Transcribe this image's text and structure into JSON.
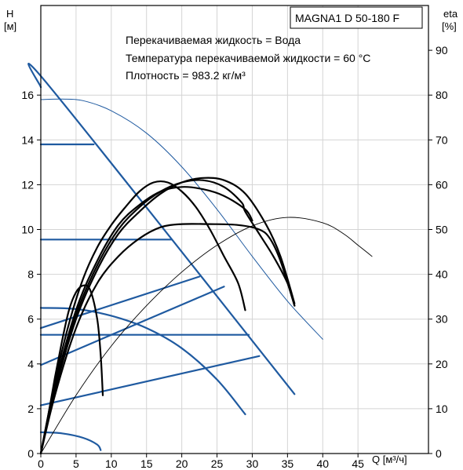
{
  "chart_data": {
    "type": "line",
    "model": "MAGNA1 D 50-180 F",
    "info_lines": [
      "Перекачиваемая жидкость = Вода",
      "Температура перекачиваемой жидкости = 60 °C",
      "Плотность = 983.2 кг/м³"
    ],
    "xlabel": "Q [м³/ч]",
    "ylabel_left": [
      "H",
      "[м]"
    ],
    "ylabel_right": [
      "eta",
      "[%]"
    ],
    "xlim": [
      0,
      55
    ],
    "ylim_left": [
      0,
      20
    ],
    "ylim_right": [
      0,
      100
    ],
    "x_ticks": [
      0,
      5,
      10,
      15,
      20,
      25,
      30,
      35,
      40,
      45
    ],
    "y_left_ticks": [
      0,
      2,
      4,
      6,
      8,
      10,
      12,
      14,
      16
    ],
    "y_right_ticks": [
      0,
      10,
      20,
      30,
      40,
      50,
      60,
      70,
      80,
      90
    ],
    "grid": true,
    "colors": {
      "head": "#1f5aa0",
      "efficiency": "#000000",
      "thin_head": "#1f5aa0"
    },
    "series": [
      {
        "axis": "left",
        "style": "head-thick",
        "points": [
          [
            0,
            16.35
          ],
          [
            1.2,
            16.4
          ],
          [
            36,
            2.65
          ]
        ]
      },
      {
        "axis": "left",
        "style": "head-thick",
        "points": [
          [
            0,
            13.8
          ],
          [
            7.5,
            13.8
          ]
        ]
      },
      {
        "axis": "left",
        "style": "head-thick",
        "points": [
          [
            0,
            9.55
          ],
          [
            18.5,
            9.55
          ]
        ]
      },
      {
        "axis": "left",
        "style": "head-thick",
        "points": [
          [
            0,
            5.3
          ],
          [
            29.5,
            5.3
          ]
        ]
      },
      {
        "axis": "left",
        "style": "head-thick",
        "points": [
          [
            0,
            5.6
          ],
          [
            22.5,
            7.9
          ]
        ]
      },
      {
        "axis": "left",
        "style": "head-thick",
        "points": [
          [
            0,
            3.95
          ],
          [
            26,
            7.45
          ]
        ]
      },
      {
        "axis": "left",
        "style": "head-thick",
        "points": [
          [
            0,
            2.15
          ],
          [
            31,
            4.35
          ]
        ]
      },
      {
        "axis": "left",
        "style": "head-thick",
        "points": [
          [
            0,
            6.5
          ],
          [
            5,
            6.45
          ],
          [
            10,
            6.15
          ],
          [
            15,
            5.6
          ],
          [
            20,
            4.7
          ],
          [
            25,
            3.3
          ],
          [
            29,
            1.75
          ]
        ]
      },
      {
        "axis": "left",
        "style": "head-thick",
        "points": [
          [
            0,
            0.95
          ],
          [
            3,
            0.9
          ],
          [
            6,
            0.7
          ],
          [
            8,
            0.4
          ],
          [
            8.5,
            0.15
          ]
        ]
      },
      {
        "axis": "left",
        "style": "head-thin",
        "points": [
          [
            0,
            15.8
          ],
          [
            3,
            15.82
          ],
          [
            6,
            15.75
          ],
          [
            10,
            15.3
          ],
          [
            15,
            14.3
          ],
          [
            20,
            12.8
          ],
          [
            25,
            10.9
          ],
          [
            30,
            8.8
          ],
          [
            35,
            6.8
          ],
          [
            40,
            5.1
          ]
        ]
      },
      {
        "axis": "right",
        "style": "eta-thick",
        "points": [
          [
            0,
            0
          ],
          [
            1,
            8
          ],
          [
            2,
            17
          ],
          [
            3,
            25
          ],
          [
            4,
            32
          ],
          [
            5,
            36
          ],
          [
            6,
            37.5
          ],
          [
            7,
            36.5
          ],
          [
            8,
            30
          ],
          [
            8.5,
            22
          ],
          [
            8.8,
            13
          ]
        ]
      },
      {
        "axis": "right",
        "style": "eta-thick",
        "points": [
          [
            0,
            0
          ],
          [
            2,
            16
          ],
          [
            4,
            29
          ],
          [
            6,
            39
          ],
          [
            8,
            46
          ],
          [
            10,
            51
          ],
          [
            12,
            55
          ],
          [
            14,
            58.5
          ],
          [
            16,
            60.5
          ],
          [
            18,
            60.5
          ],
          [
            20,
            58.5
          ],
          [
            22,
            55
          ],
          [
            24,
            50
          ],
          [
            26,
            44
          ],
          [
            28,
            38
          ],
          [
            29,
            32
          ]
        ]
      },
      {
        "axis": "right",
        "style": "eta-thick",
        "points": [
          [
            0,
            0
          ],
          [
            2,
            15
          ],
          [
            5,
            32
          ],
          [
            8,
            43
          ],
          [
            11,
            51
          ],
          [
            14,
            55.5
          ],
          [
            17,
            58.5
          ],
          [
            20,
            59.5
          ],
          [
            23,
            59
          ],
          [
            26,
            57.5
          ],
          [
            29,
            54.5
          ],
          [
            30,
            52
          ]
        ]
      },
      {
        "axis": "right",
        "style": "eta-thick",
        "points": [
          [
            0,
            0
          ],
          [
            2,
            14
          ],
          [
            5,
            30
          ],
          [
            8,
            41
          ],
          [
            11,
            49
          ],
          [
            14,
            54
          ],
          [
            17,
            58
          ],
          [
            20,
            60.5
          ],
          [
            23,
            61.5
          ],
          [
            26,
            61
          ],
          [
            29,
            58
          ],
          [
            32,
            51
          ],
          [
            34,
            44
          ],
          [
            36,
            33.5
          ]
        ]
      },
      {
        "axis": "right",
        "style": "eta-thick",
        "points": [
          [
            0,
            0
          ],
          [
            2,
            13
          ],
          [
            5,
            28
          ],
          [
            8,
            38
          ],
          [
            11,
            44
          ],
          [
            14,
            48
          ],
          [
            17,
            50.5
          ],
          [
            20,
            51.2
          ],
          [
            24,
            51.2
          ],
          [
            28,
            51
          ],
          [
            31,
            50
          ],
          [
            32.5,
            48
          ],
          [
            34,
            43
          ],
          [
            36,
            33
          ]
        ]
      },
      {
        "axis": "right",
        "style": "eta-thick",
        "points": [
          [
            0,
            0
          ],
          [
            2,
            15
          ],
          [
            5,
            31
          ],
          [
            8,
            42
          ],
          [
            11,
            50
          ],
          [
            14,
            55
          ],
          [
            17,
            58.5
          ],
          [
            20,
            60.5
          ],
          [
            23,
            61
          ],
          [
            26,
            59.5
          ],
          [
            28.5,
            56
          ],
          [
            29,
            54
          ],
          [
            31,
            49
          ],
          [
            33,
            44
          ],
          [
            35,
            38
          ],
          [
            36,
            33
          ]
        ]
      },
      {
        "axis": "right",
        "style": "eta-thin",
        "points": [
          [
            0,
            0
          ],
          [
            5,
            13
          ],
          [
            10,
            24
          ],
          [
            15,
            33
          ],
          [
            20,
            40.5
          ],
          [
            25,
            46.5
          ],
          [
            30,
            50.8
          ],
          [
            35,
            52.7
          ],
          [
            40,
            51.5
          ],
          [
            43,
            49
          ],
          [
            45,
            46.5
          ],
          [
            47,
            44
          ]
        ]
      }
    ]
  }
}
